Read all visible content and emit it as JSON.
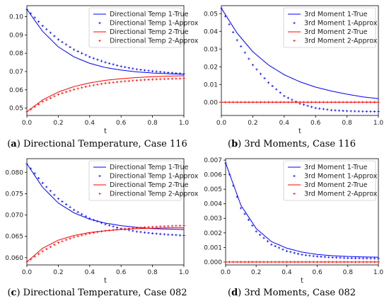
{
  "chart_data": [
    {
      "type": "line",
      "xlabel": "t",
      "xlim": [
        0,
        1
      ],
      "ylim": [
        0.046,
        0.106
      ],
      "xticks": [
        "0.0",
        "0.2",
        "0.4",
        "0.6",
        "0.8",
        "1.0"
      ],
      "yticks": [
        "0.05",
        "0.06",
        "0.07",
        "0.08",
        "0.09",
        "0.10"
      ],
      "xtick_values": [
        0,
        0.2,
        0.4,
        0.6,
        0.8,
        1.0
      ],
      "ytick_values": [
        0.05,
        0.06,
        0.07,
        0.08,
        0.09,
        0.1
      ],
      "legend_placement": "top-right",
      "series": [
        {
          "name": "Directional Temp 1-True",
          "style": "line",
          "color": "#0000ff",
          "x": [
            0,
            0.1,
            0.2,
            0.3,
            0.4,
            0.5,
            0.6,
            0.7,
            0.8,
            0.9,
            1.0
          ],
          "y": [
            0.104,
            0.092,
            0.0835,
            0.078,
            0.0745,
            0.0722,
            0.0708,
            0.0698,
            0.0692,
            0.0688,
            0.0685
          ]
        },
        {
          "name": "Directional Temp 1-Approx",
          "style": "markers",
          "color": "#0000ff",
          "x": [
            0,
            0.1,
            0.2,
            0.3,
            0.4,
            0.5,
            0.6,
            0.7,
            0.8,
            0.9,
            1.0
          ],
          "y": [
            0.104,
            0.095,
            0.0875,
            0.082,
            0.078,
            0.075,
            0.0728,
            0.0712,
            0.0702,
            0.0694,
            0.0688
          ]
        },
        {
          "name": "Directional Temp 2-True",
          "style": "line",
          "color": "#ff0000",
          "x": [
            0,
            0.1,
            0.2,
            0.3,
            0.4,
            0.5,
            0.6,
            0.7,
            0.8,
            0.9,
            1.0
          ],
          "y": [
            0.048,
            0.0545,
            0.0588,
            0.0618,
            0.0638,
            0.0652,
            0.0661,
            0.0667,
            0.0672,
            0.0675,
            0.0677
          ]
        },
        {
          "name": "Directional Temp 2-Approx",
          "style": "markers",
          "color": "#ff0000",
          "x": [
            0,
            0.1,
            0.2,
            0.3,
            0.4,
            0.5,
            0.6,
            0.7,
            0.8,
            0.9,
            1.0
          ],
          "y": [
            0.048,
            0.0535,
            0.0575,
            0.0602,
            0.0622,
            0.0636,
            0.0645,
            0.0652,
            0.0657,
            0.066,
            0.0662
          ]
        }
      ]
    },
    {
      "type": "line",
      "xlabel": "t",
      "xlim": [
        0,
        1
      ],
      "ylim": [
        -0.0075,
        0.0545
      ],
      "xticks": [
        "0.0",
        "0.2",
        "0.4",
        "0.6",
        "0.8",
        "1.0"
      ],
      "yticks": [
        "0.00",
        "0.01",
        "0.02",
        "0.03",
        "0.04",
        "0.05"
      ],
      "xtick_values": [
        0,
        0.2,
        0.4,
        0.6,
        0.8,
        1.0
      ],
      "ytick_values": [
        0.0,
        0.01,
        0.02,
        0.03,
        0.04,
        0.05
      ],
      "legend_placement": "top-right",
      "series": [
        {
          "name": "3rd Moment 1-True",
          "style": "line",
          "color": "#0000ff",
          "x": [
            0,
            0.1,
            0.2,
            0.3,
            0.4,
            0.5,
            0.6,
            0.7,
            0.8,
            0.9,
            1.0
          ],
          "y": [
            0.053,
            0.039,
            0.0285,
            0.021,
            0.0155,
            0.0115,
            0.0085,
            0.0063,
            0.0045,
            0.003,
            0.002
          ]
        },
        {
          "name": "3rd Moment 1-Approx",
          "style": "markers",
          "color": "#0000ff",
          "x": [
            0,
            0.1,
            0.2,
            0.3,
            0.4,
            0.5,
            0.6,
            0.7,
            0.8,
            0.9,
            1.0
          ],
          "y": [
            0.053,
            0.035,
            0.021,
            0.011,
            0.0035,
            -0.0008,
            -0.0033,
            -0.0045,
            -0.005,
            -0.0052,
            -0.0053
          ]
        },
        {
          "name": "3rd Moment 2-True",
          "style": "line",
          "color": "#ff0000",
          "x": [
            0,
            1.0
          ],
          "y": [
            0.0,
            0.0
          ]
        },
        {
          "name": "3rd Moment 2-Approx",
          "style": "markers",
          "color": "#ff0000",
          "x": [
            0,
            0.1,
            0.2,
            0.3,
            0.4,
            0.5,
            0.6,
            0.7,
            0.8,
            0.9,
            1.0
          ],
          "y": [
            0,
            0,
            0,
            0,
            0,
            0,
            0,
            0,
            0,
            0,
            0
          ]
        }
      ]
    },
    {
      "type": "line",
      "xlabel": "t",
      "xlim": [
        0,
        1
      ],
      "ylim": [
        0.0583,
        0.0832
      ],
      "xticks": [
        "0.0",
        "0.2",
        "0.4",
        "0.6",
        "0.8",
        "1.0"
      ],
      "yticks": [
        "0.060",
        "0.065",
        "0.070",
        "0.075",
        "0.080"
      ],
      "xtick_values": [
        0,
        0.2,
        0.4,
        0.6,
        0.8,
        1.0
      ],
      "ytick_values": [
        0.06,
        0.065,
        0.07,
        0.075,
        0.08
      ],
      "legend_placement": "top-right",
      "series": [
        {
          "name": "Directional Temp 1-True",
          "style": "line",
          "color": "#0000ff",
          "x": [
            0,
            0.1,
            0.2,
            0.3,
            0.4,
            0.5,
            0.6,
            0.7,
            0.8,
            0.9,
            1.0
          ],
          "y": [
            0.082,
            0.0765,
            0.0728,
            0.0705,
            0.069,
            0.0681,
            0.0675,
            0.0671,
            0.0668,
            0.0667,
            0.0666
          ]
        },
        {
          "name": "Directional Temp 1-Approx",
          "style": "markers",
          "color": "#0000ff",
          "x": [
            0,
            0.1,
            0.2,
            0.3,
            0.4,
            0.5,
            0.6,
            0.7,
            0.8,
            0.9,
            1.0
          ],
          "y": [
            0.082,
            0.0775,
            0.0738,
            0.0712,
            0.0692,
            0.0678,
            0.0668,
            0.0661,
            0.0657,
            0.0654,
            0.0652
          ]
        },
        {
          "name": "Directional Temp 2-True",
          "style": "line",
          "color": "#ff0000",
          "x": [
            0,
            0.1,
            0.2,
            0.3,
            0.4,
            0.5,
            0.6,
            0.7,
            0.8,
            0.9,
            1.0
          ],
          "y": [
            0.059,
            0.0622,
            0.0641,
            0.0652,
            0.0659,
            0.0663,
            0.0666,
            0.0668,
            0.0669,
            0.067,
            0.067
          ]
        },
        {
          "name": "Directional Temp 2-Approx",
          "style": "markers",
          "color": "#ff0000",
          "x": [
            0,
            0.1,
            0.2,
            0.3,
            0.4,
            0.5,
            0.6,
            0.7,
            0.8,
            0.9,
            1.0
          ],
          "y": [
            0.059,
            0.0615,
            0.0635,
            0.0648,
            0.0657,
            0.0663,
            0.0667,
            0.067,
            0.0672,
            0.0674,
            0.0675
          ]
        }
      ]
    },
    {
      "type": "line",
      "xlabel": "t",
      "xlim": [
        0,
        1
      ],
      "ylim": [
        -0.0002,
        0.0071
      ],
      "xticks": [
        "0.0",
        "0.2",
        "0.4",
        "0.6",
        "0.8",
        "1.0"
      ],
      "yticks": [
        "0.000",
        "0.001",
        "0.002",
        "0.003",
        "0.004",
        "0.005",
        "0.006",
        "0.007"
      ],
      "xtick_values": [
        0,
        0.2,
        0.4,
        0.6,
        0.8,
        1.0
      ],
      "ytick_values": [
        0.0,
        0.001,
        0.002,
        0.003,
        0.004,
        0.005,
        0.006,
        0.007
      ],
      "legend_placement": "top-right",
      "series": [
        {
          "name": "3rd Moment 1-True",
          "style": "line",
          "color": "#0000ff",
          "x": [
            0,
            0.1,
            0.2,
            0.3,
            0.4,
            0.5,
            0.6,
            0.7,
            0.8,
            0.9,
            1.0
          ],
          "y": [
            0.0068,
            0.0039,
            0.0023,
            0.0014,
            0.00095,
            0.00068,
            0.00052,
            0.00043,
            0.00038,
            0.00035,
            0.00033
          ]
        },
        {
          "name": "3rd Moment 1-Approx",
          "style": "markers",
          "color": "#0000ff",
          "x": [
            0,
            0.1,
            0.2,
            0.3,
            0.4,
            0.5,
            0.6,
            0.7,
            0.8,
            0.9,
            1.0
          ],
          "y": [
            0.0068,
            0.0037,
            0.0021,
            0.0012,
            0.00075,
            0.0005,
            0.00038,
            0.00031,
            0.00027,
            0.00025,
            0.00024
          ]
        },
        {
          "name": "3rd Moment 2-True",
          "style": "line",
          "color": "#ff0000",
          "x": [
            0,
            1.0
          ],
          "y": [
            0.0,
            0.0
          ]
        },
        {
          "name": "3rd Moment 2-Approx",
          "style": "markers",
          "color": "#ff0000",
          "x": [
            0,
            0.1,
            0.2,
            0.3,
            0.4,
            0.5,
            0.6,
            0.7,
            0.8,
            0.9,
            1.0
          ],
          "y": [
            0,
            0,
            0,
            0,
            0,
            0,
            0,
            0,
            0,
            0,
            0
          ]
        }
      ]
    }
  ],
  "captions": [
    {
      "letter": "a",
      "text": " Directional Temperature, Case 116"
    },
    {
      "letter": "b",
      "text": " 3rd Moments, Case 116"
    },
    {
      "letter": "c",
      "text": " Directional Temperature, Case 082"
    },
    {
      "letter": "d",
      "text": " 3rd Moments, Case 082"
    }
  ]
}
